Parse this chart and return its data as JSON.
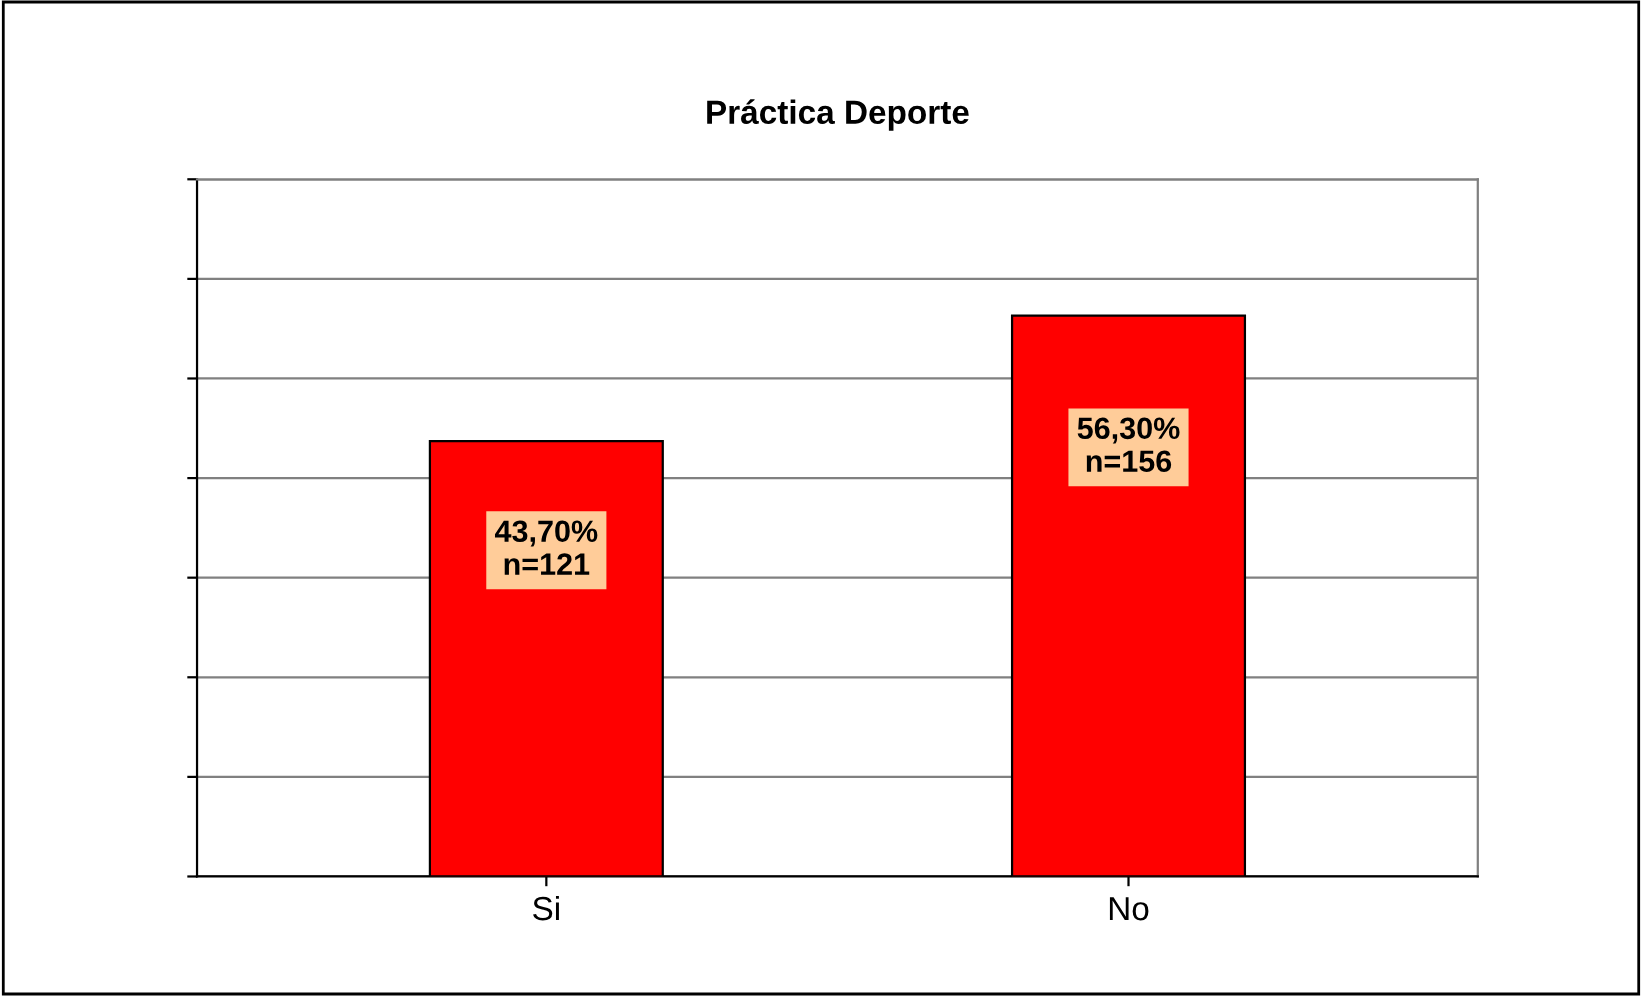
{
  "chart_data": {
    "type": "bar",
    "title": "Práctica Deporte",
    "categories": [
      "Si",
      "No"
    ],
    "values": [
      43.7,
      56.3
    ],
    "color": "#ff0000",
    "value_labels": [
      "43,70%\nn=121",
      "56,30%\nn=156"
    ],
    "ylim": [
      0,
      70
    ],
    "yticks": [
      {
        "value": 0,
        "label": null
      },
      {
        "value": 10,
        "label": null
      },
      {
        "value": 20,
        "label": null
      },
      {
        "value": 30,
        "label": null
      },
      {
        "value": 40,
        "label": null
      },
      {
        "value": 50,
        "label": null
      },
      {
        "value": 60,
        "label": null
      },
      {
        "value": 70,
        "label": null
      }
    ],
    "grid": "y",
    "tick_labels": "x"
  }
}
